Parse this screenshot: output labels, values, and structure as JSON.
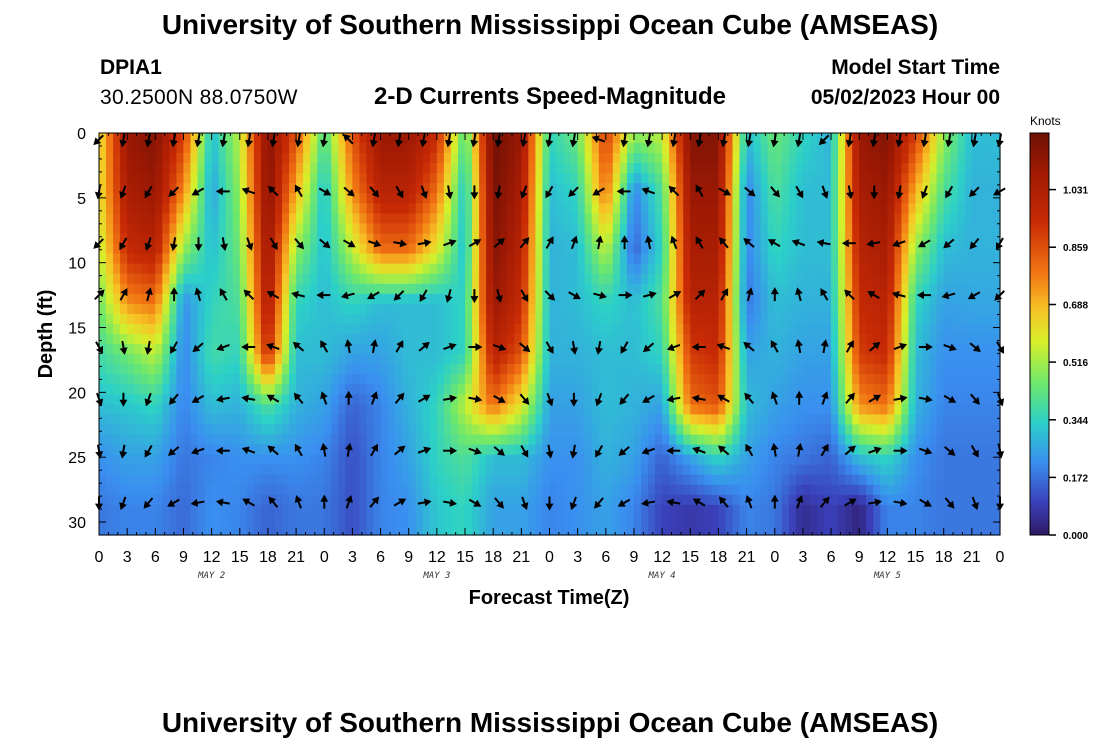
{
  "header": {
    "title": "University of Southern Mississippi Ocean Cube (AMSEAS)",
    "station": "DPIA1",
    "coords": "30.2500N  88.0750W",
    "subtitle": "2-D Currents Speed-Magnitude",
    "start_label": "Model Start Time",
    "start_value": "05/02/2023 Hour 00"
  },
  "footer": {
    "title": "University of Southern Mississippi Ocean Cube (AMSEAS)"
  },
  "chart_data": {
    "type": "heatmap",
    "title": "2-D Currents Speed-Magnitude",
    "xlabel": "Forecast Time(Z)",
    "ylabel": "Depth (ft)",
    "x_tick_labels": [
      "0",
      "3",
      "6",
      "9",
      "12",
      "15",
      "18",
      "21",
      "0",
      "3",
      "6",
      "9",
      "12",
      "15",
      "18",
      "21",
      "0",
      "3",
      "6",
      "9",
      "12",
      "15",
      "18",
      "21",
      "0",
      "3",
      "6",
      "9",
      "12",
      "15",
      "18",
      "21",
      "0"
    ],
    "x_range_hours": [
      0,
      96
    ],
    "day_labels": [
      {
        "label": "MAY 2",
        "hour": 12
      },
      {
        "label": "MAY 3",
        "hour": 36
      },
      {
        "label": "MAY 4",
        "hour": 60
      },
      {
        "label": "MAY 5",
        "hour": 84
      }
    ],
    "y_ticks": [
      0,
      5,
      10,
      15,
      20,
      25,
      30
    ],
    "y_range_ft": [
      0,
      31
    ],
    "colorbar": {
      "unit": "Knots",
      "ticks": [
        "1.031",
        "0.859",
        "0.688",
        "0.516",
        "0.344",
        "0.172",
        "0.000"
      ],
      "tick_values": [
        1.031,
        0.859,
        0.688,
        0.516,
        0.344,
        0.172,
        0.0
      ],
      "range": [
        0,
        1.2
      ]
    },
    "speed_columns_knots": [
      {
        "hour": 0,
        "profile": [
          0.6,
          0.6,
          0.55,
          0.45,
          0.38,
          0.3,
          0.22,
          0.18
        ]
      },
      {
        "hour": 3,
        "profile": [
          1.1,
          1.05,
          0.95,
          0.75,
          0.45,
          0.32,
          0.25,
          0.2
        ]
      },
      {
        "hour": 6,
        "profile": [
          1.15,
          1.1,
          1.0,
          0.8,
          0.55,
          0.35,
          0.25,
          0.2
        ]
      },
      {
        "hour": 9,
        "profile": [
          0.9,
          0.75,
          0.5,
          0.22,
          0.2,
          0.2,
          0.18,
          0.16
        ]
      },
      {
        "hour": 12,
        "profile": [
          0.3,
          0.25,
          0.3,
          0.35,
          0.38,
          0.3,
          0.2,
          0.22
        ]
      },
      {
        "hour": 15,
        "profile": [
          0.55,
          0.5,
          0.45,
          0.4,
          0.35,
          0.28,
          0.22,
          0.2
        ]
      },
      {
        "hour": 18,
        "profile": [
          1.15,
          1.15,
          1.1,
          1.05,
          0.95,
          0.4,
          0.22,
          0.15
        ]
      },
      {
        "hour": 21,
        "profile": [
          0.85,
          0.7,
          0.5,
          0.35,
          0.3,
          0.28,
          0.22,
          0.18
        ]
      },
      {
        "hour": 24,
        "profile": [
          0.4,
          0.3,
          0.3,
          0.3,
          0.3,
          0.25,
          0.2,
          0.18
        ]
      },
      {
        "hour": 27,
        "profile": [
          0.85,
          0.75,
          0.55,
          0.35,
          0.25,
          0.15,
          0.12,
          0.12
        ]
      },
      {
        "hour": 30,
        "profile": [
          1.1,
          1.0,
          0.8,
          0.3,
          0.25,
          0.2,
          0.2,
          0.2
        ]
      },
      {
        "hour": 33,
        "profile": [
          1.1,
          1.0,
          0.8,
          0.3,
          0.3,
          0.28,
          0.25,
          0.22
        ]
      },
      {
        "hour": 36,
        "profile": [
          0.95,
          0.8,
          0.6,
          0.3,
          0.3,
          0.35,
          0.35,
          0.32
        ]
      },
      {
        "hour": 39,
        "profile": [
          0.4,
          0.3,
          0.3,
          0.35,
          0.35,
          0.55,
          0.4,
          0.35
        ]
      },
      {
        "hour": 42,
        "profile": [
          1.2,
          1.18,
          1.15,
          1.1,
          1.0,
          0.8,
          0.3,
          0.25
        ]
      },
      {
        "hour": 45,
        "profile": [
          1.1,
          1.05,
          1.0,
          0.95,
          0.85,
          0.6,
          0.3,
          0.25
        ]
      },
      {
        "hour": 48,
        "profile": [
          0.35,
          0.3,
          0.28,
          0.28,
          0.28,
          0.25,
          0.22,
          0.2
        ]
      },
      {
        "hour": 51,
        "profile": [
          0.45,
          0.35,
          0.3,
          0.3,
          0.28,
          0.25,
          0.22,
          0.22
        ]
      },
      {
        "hour": 54,
        "profile": [
          0.9,
          0.8,
          0.55,
          0.35,
          0.3,
          0.3,
          0.28,
          0.25
        ]
      },
      {
        "hour": 57,
        "profile": [
          0.5,
          0.2,
          0.15,
          0.3,
          0.3,
          0.28,
          0.25,
          0.2
        ]
      },
      {
        "hour": 60,
        "profile": [
          0.55,
          0.4,
          0.35,
          0.4,
          0.35,
          0.25,
          0.15,
          0.1
        ]
      },
      {
        "hour": 63,
        "profile": [
          1.15,
          1.1,
          1.05,
          1.0,
          0.9,
          0.8,
          0.25,
          0.08
        ]
      },
      {
        "hour": 66,
        "profile": [
          1.15,
          1.1,
          1.05,
          1.0,
          0.95,
          0.85,
          0.35,
          0.1
        ]
      },
      {
        "hour": 69,
        "profile": [
          0.3,
          0.2,
          0.2,
          0.18,
          0.25,
          0.3,
          0.25,
          0.2
        ]
      },
      {
        "hour": 72,
        "profile": [
          0.45,
          0.4,
          0.35,
          0.3,
          0.28,
          0.25,
          0.2,
          0.18
        ]
      },
      {
        "hour": 75,
        "profile": [
          0.35,
          0.3,
          0.3,
          0.28,
          0.25,
          0.22,
          0.18,
          0.05
        ]
      },
      {
        "hour": 78,
        "profile": [
          0.28,
          0.3,
          0.3,
          0.28,
          0.25,
          0.22,
          0.15,
          0.1
        ]
      },
      {
        "hour": 81,
        "profile": [
          1.1,
          1.05,
          1.0,
          0.95,
          0.9,
          0.75,
          0.3,
          0.03
        ]
      },
      {
        "hour": 84,
        "profile": [
          1.15,
          1.1,
          1.05,
          1.0,
          0.95,
          0.8,
          0.35,
          0.2
        ]
      },
      {
        "hour": 87,
        "profile": [
          0.9,
          0.7,
          0.5,
          0.35,
          0.3,
          0.28,
          0.22,
          0.2
        ]
      },
      {
        "hour": 90,
        "profile": [
          0.5,
          0.4,
          0.3,
          0.25,
          0.22,
          0.2,
          0.18,
          0.18
        ]
      },
      {
        "hour": 93,
        "profile": [
          0.3,
          0.28,
          0.28,
          0.26,
          0.22,
          0.2,
          0.18,
          0.18
        ]
      }
    ],
    "profile_depths_ft": [
      0,
      4.5,
      9,
      13,
      17,
      21,
      25,
      29
    ],
    "vector_depths_ft": [
      0.5,
      4.5,
      8.5,
      12.5,
      16.5,
      20.5,
      24.5,
      28.5
    ],
    "vector_hours": [
      0,
      2.6,
      5.3,
      8,
      10.6,
      13.3,
      16,
      18.6,
      21.3,
      24,
      26.6,
      29.3,
      32,
      34.6,
      37.3,
      40,
      42.6,
      45.3,
      48,
      50.6,
      53.3,
      56,
      58.6,
      61.3,
      64,
      66.6,
      69.3,
      72,
      74.6,
      77.3,
      80,
      82.6,
      85.3,
      88,
      90.6,
      93.3,
      96
    ],
    "vector_angles_deg": [
      [
        135,
        100,
        100,
        100,
        100,
        100,
        100,
        100,
        100,
        100,
        225,
        100,
        100,
        100,
        100,
        100,
        100,
        100,
        100,
        100,
        200,
        100,
        100,
        100,
        100,
        100,
        100,
        100,
        100,
        135,
        100,
        100,
        100,
        100,
        100,
        100,
        100
      ],
      [
        100,
        110,
        120,
        135,
        150,
        180,
        200,
        225,
        240,
        30,
        40,
        50,
        60,
        70,
        80,
        90,
        100,
        110,
        120,
        135,
        150,
        180,
        200,
        225,
        240,
        30,
        40,
        50,
        60,
        70,
        80,
        90,
        100,
        110,
        120,
        135,
        150
      ],
      [
        135,
        120,
        110,
        100,
        90,
        80,
        70,
        60,
        50,
        40,
        30,
        20,
        10,
        350,
        340,
        330,
        320,
        310,
        300,
        290,
        280,
        270,
        260,
        250,
        240,
        230,
        220,
        210,
        200,
        190,
        180,
        170,
        160,
        150,
        140,
        130,
        120
      ],
      [
        315,
        300,
        285,
        270,
        255,
        240,
        225,
        210,
        195,
        180,
        165,
        150,
        135,
        120,
        105,
        90,
        75,
        60,
        45,
        30,
        15,
        0,
        345,
        330,
        315,
        300,
        285,
        270,
        255,
        240,
        225,
        210,
        195,
        180,
        165,
        150,
        135
      ],
      [
        60,
        80,
        100,
        120,
        140,
        160,
        180,
        200,
        220,
        240,
        260,
        280,
        300,
        320,
        340,
        0,
        20,
        40,
        60,
        80,
        100,
        120,
        140,
        160,
        180,
        200,
        220,
        240,
        260,
        280,
        300,
        320,
        340,
        0,
        20,
        40,
        60
      ],
      [
        70,
        90,
        110,
        130,
        150,
        170,
        190,
        210,
        230,
        250,
        270,
        290,
        310,
        330,
        350,
        10,
        30,
        50,
        70,
        90,
        110,
        130,
        150,
        170,
        190,
        210,
        230,
        250,
        270,
        290,
        310,
        330,
        350,
        10,
        30,
        50,
        70
      ],
      [
        80,
        100,
        120,
        140,
        160,
        180,
        200,
        220,
        240,
        260,
        280,
        300,
        320,
        340,
        0,
        20,
        40,
        60,
        80,
        100,
        120,
        140,
        160,
        180,
        200,
        220,
        240,
        260,
        280,
        300,
        320,
        340,
        0,
        20,
        40,
        60,
        80
      ],
      [
        90,
        110,
        130,
        150,
        170,
        190,
        210,
        230,
        250,
        270,
        290,
        310,
        330,
        350,
        10,
        30,
        50,
        70,
        90,
        110,
        130,
        150,
        170,
        190,
        210,
        230,
        250,
        270,
        290,
        310,
        330,
        350,
        10,
        30,
        50,
        70,
        90
      ]
    ]
  }
}
